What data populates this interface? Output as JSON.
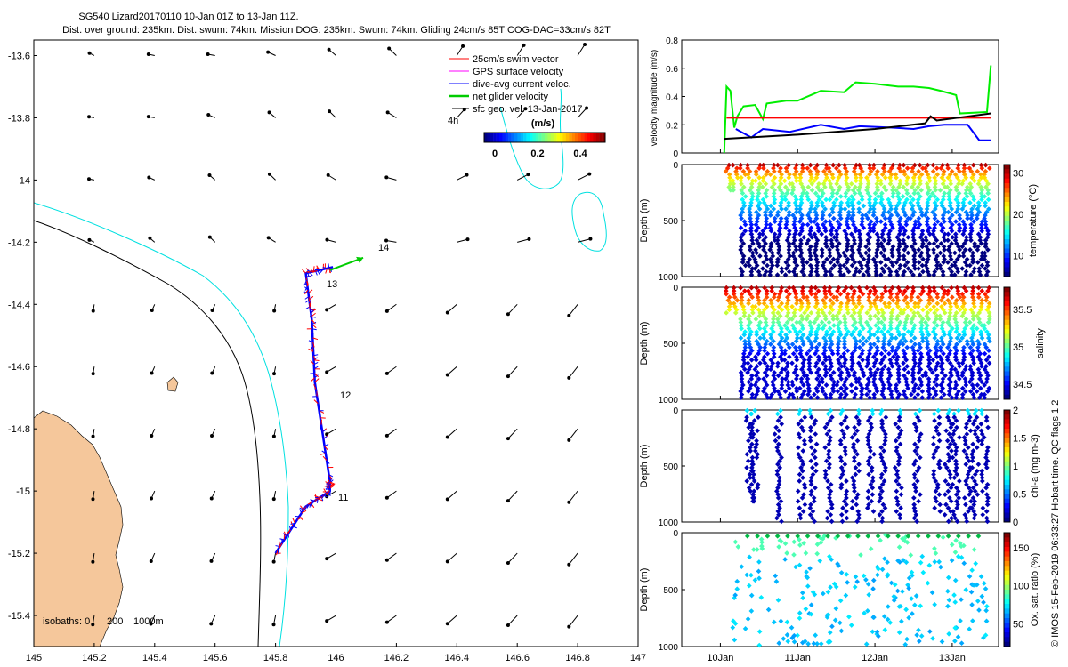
{
  "header": {
    "title": "SG540 Lizard20170110 10-Jan 01Z to 13-Jan 11Z.",
    "subtitle": "Dist. over ground: 235km. Dist. swum: 74km. Mission DOG: 235km. Swum: 74km. Gliding 24cm/s 85T COG-DAC=33cm/s 82T"
  },
  "side_note": "© IMOS 15-Feb-2019 06:33:27 Hobart time. QC flags 1  2",
  "colors": {
    "swim": "#ff0000",
    "gps": "#ff00ff",
    "dac": "#0000ff",
    "net": "#00cc00",
    "geo": "#000000",
    "land": "#f5c79b",
    "isobath_200": "#00e0e0",
    "isobath_1000": "#000000"
  },
  "chart_data": [
    {
      "type": "scatter",
      "name": "map",
      "xlim": [
        145,
        147
      ],
      "ylim": [
        -15.5,
        -13.55
      ],
      "xticks": [
        145,
        145.2,
        145.4,
        145.6,
        145.8,
        146,
        146.2,
        146.4,
        146.6,
        146.8,
        147
      ],
      "xtick_labels": [
        "145",
        "145.2",
        "145.4",
        "145.6",
        "145.8",
        "146",
        "146.2",
        "146.4",
        "146.6",
        "146.8",
        "147"
      ],
      "yticks": [
        -13.6,
        -13.8,
        -14,
        -14.2,
        -14.4,
        -14.6,
        -14.8,
        -15,
        -15.2,
        -15.4
      ],
      "ytick_labels": [
        "-13.6",
        "-13.8",
        "-14",
        "-14.2",
        "-14.4",
        "-14.6",
        "-14.8",
        "-15",
        "-15.2",
        "-15.4"
      ],
      "legend": {
        "position": "top-right",
        "entries": [
          "25cm/s swim vector",
          "GPS surface velocity",
          "dive-avg current veloc.",
          "net glider velocity",
          "sfc geo. vel. 13-Jan-2017"
        ],
        "extra_label": "4h"
      },
      "colorbar": {
        "title": "(m/s)",
        "ticks": [
          "0",
          "0.2",
          "0.4"
        ],
        "range": [
          0,
          0.5
        ]
      },
      "isobath_legend": {
        "label": "isobaths: 0",
        "values": [
          "200",
          "1000m"
        ]
      },
      "track": [
        [
          145.8,
          -15.2
        ],
        [
          145.9,
          -15.05
        ],
        [
          145.98,
          -15.0
        ],
        [
          145.98,
          -14.97
        ],
        [
          145.93,
          -14.65
        ],
        [
          145.92,
          -14.45
        ],
        [
          145.9,
          -14.3
        ],
        [
          145.99,
          -14.28
        ]
      ],
      "net_velocity_arrow": {
        "from": [
          145.98,
          -14.29
        ],
        "to": [
          146.09,
          -14.25
        ]
      },
      "day_labels": [
        {
          "text": "11",
          "lon": 146.0,
          "lat": -15.06
        },
        {
          "text": "12",
          "lon": 146.02,
          "lat": -14.73
        },
        {
          "text": "13",
          "lon": 145.97,
          "lat": -14.36
        },
        {
          "text": "14",
          "lon": 146.14,
          "lat": -14.23
        }
      ],
      "geo_grid": {
        "lons": [
          145.2,
          145.4,
          145.6,
          145.8,
          146.0,
          146.2,
          146.4,
          146.6,
          146.8
        ],
        "lats": [
          -13.6,
          -13.8,
          -14.0,
          -14.2,
          -14.4,
          -14.6,
          -14.8,
          -15.0,
          -15.2,
          -15.4
        ]
      }
    },
    {
      "type": "line",
      "name": "velocity",
      "ylabel": "velocity magnitude (m/s)",
      "xlim": [
        9.5,
        13.6
      ],
      "ylim": [
        0,
        0.8
      ],
      "yticks": [
        0,
        0.2,
        0.4,
        0.6,
        0.8
      ],
      "ytick_labels": [
        "0",
        "0.2",
        "0.4",
        "0.6",
        "0.8"
      ],
      "series": [
        {
          "name": "net glider velocity",
          "color": "#00ee00",
          "x": [
            10.05,
            10.08,
            10.13,
            10.18,
            10.22,
            10.3,
            10.45,
            10.55,
            10.6,
            10.85,
            11.0,
            11.3,
            11.6,
            11.75,
            12.0,
            12.3,
            12.5,
            12.7,
            12.85,
            13.05,
            13.1,
            13.45,
            13.5
          ],
          "y": [
            0.0,
            0.47,
            0.44,
            0.18,
            0.26,
            0.33,
            0.34,
            0.24,
            0.35,
            0.37,
            0.37,
            0.44,
            0.43,
            0.5,
            0.49,
            0.47,
            0.47,
            0.46,
            0.44,
            0.41,
            0.28,
            0.29,
            0.62
          ]
        },
        {
          "name": "swim vector",
          "color": "#ff0000",
          "x": [
            10.08,
            13.5
          ],
          "y": [
            0.25,
            0.25
          ]
        },
        {
          "name": "dive-avg current",
          "color": "#0000ff",
          "x": [
            10.2,
            10.4,
            10.55,
            10.9,
            11.3,
            11.6,
            11.8,
            12.2,
            12.5,
            12.7,
            12.9,
            13.2,
            13.35,
            13.5
          ],
          "y": [
            0.17,
            0.11,
            0.17,
            0.15,
            0.2,
            0.17,
            0.19,
            0.18,
            0.17,
            0.19,
            0.2,
            0.2,
            0.09,
            0.09
          ]
        },
        {
          "name": "geostrophic",
          "color": "#000000",
          "x": [
            10.05,
            11.0,
            12.0,
            12.65,
            12.72,
            12.8,
            13.5
          ],
          "y": [
            0.1,
            0.13,
            0.17,
            0.21,
            0.26,
            0.23,
            0.28
          ]
        }
      ]
    },
    {
      "type": "scatter",
      "name": "temperature",
      "ylabel": "Depth (m)",
      "yticks": [
        "0",
        "500",
        "1000"
      ],
      "ylim": [
        0,
        1000
      ],
      "colorbar_label": "temperature (°C)",
      "colorbar_ticks": [
        "30",
        "20",
        "10"
      ],
      "crange": [
        5,
        32
      ],
      "dives": 36,
      "first_dive_x": 10.1,
      "last_dive_x": 13.45,
      "max_depth": 1000
    },
    {
      "type": "scatter",
      "name": "salinity",
      "ylabel": "Depth (m)",
      "yticks": [
        "0",
        "500",
        "1000"
      ],
      "ylim": [
        0,
        1000
      ],
      "colorbar_label": "salinity",
      "colorbar_ticks": [
        "35.5",
        "35",
        "34.5"
      ],
      "crange": [
        34.3,
        35.8
      ],
      "dives": 36,
      "first_dive_x": 10.1,
      "last_dive_x": 13.45,
      "max_depth": 1000
    },
    {
      "type": "scatter",
      "name": "chla",
      "ylabel": "Depth (m)",
      "yticks": [
        "0",
        "500",
        "1000"
      ],
      "ylim": [
        0,
        1000
      ],
      "colorbar_label": "chl-a (mg m-3)",
      "colorbar_ticks": [
        "2",
        "1.5",
        "1",
        "0.5",
        "0"
      ],
      "crange": [
        0,
        2
      ],
      "profile_x": [
        10.38,
        10.45,
        10.75,
        11.05,
        11.2,
        11.4,
        11.6,
        11.75,
        11.95,
        12.1,
        12.3,
        12.55,
        12.8,
        12.95,
        13.05,
        13.2,
        13.3,
        13.42
      ],
      "profile_depth": [
        820,
        820,
        1000,
        980,
        1000,
        1000,
        1000,
        1000,
        920,
        1000,
        980,
        1000,
        920,
        1000,
        1000,
        1000,
        980,
        1000
      ]
    },
    {
      "type": "scatter",
      "name": "oxygen",
      "ylabel": "Depth (m)",
      "yticks": [
        "0",
        "500",
        "1000"
      ],
      "ylim": [
        0,
        1000
      ],
      "colorbar_label": "Ox. sat. ratio (%)",
      "colorbar_ticks": [
        "150",
        "100",
        "50"
      ],
      "crange": [
        20,
        170
      ],
      "xticks": [
        10,
        11,
        12,
        13
      ],
      "xtick_labels": [
        "10Jan",
        "11Jan",
        "12Jan",
        "13Jan"
      ]
    }
  ]
}
